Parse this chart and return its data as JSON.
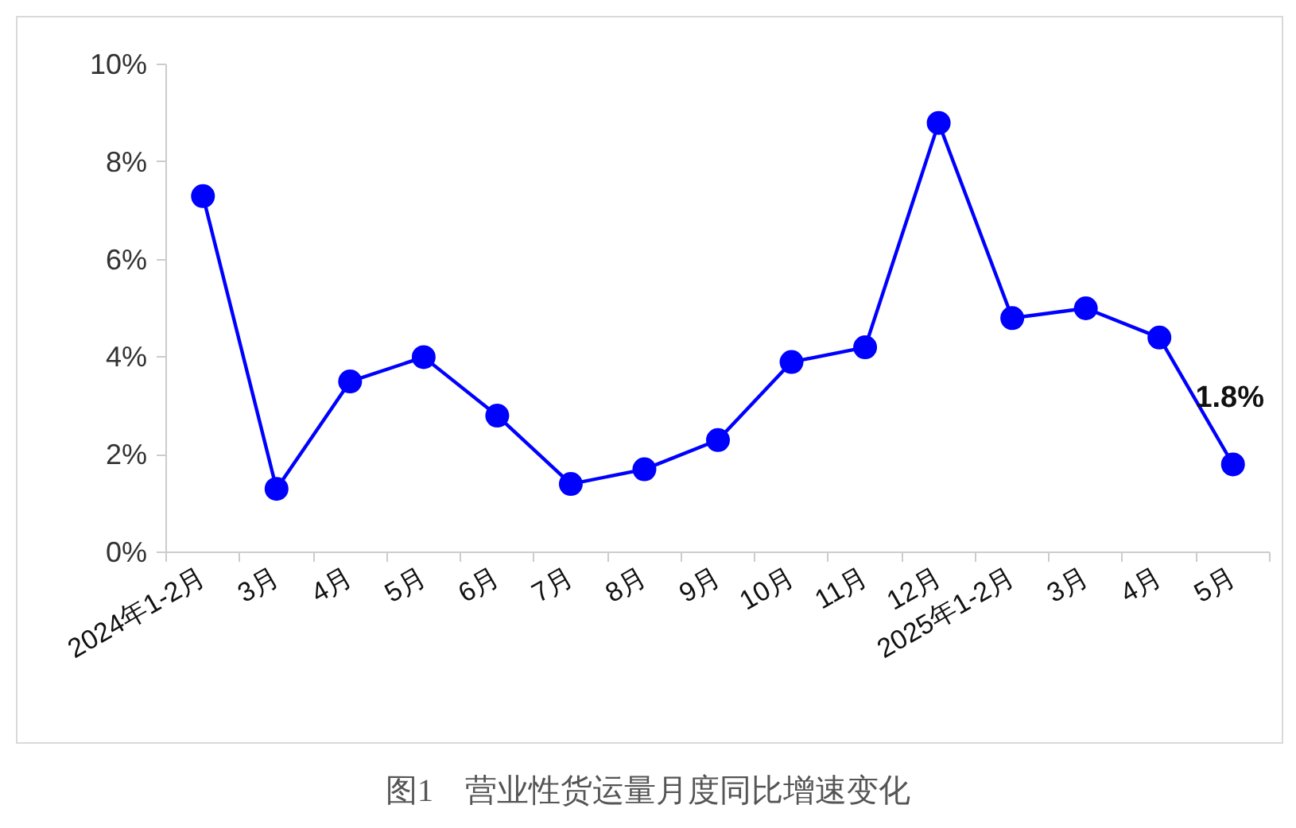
{
  "chart_data": {
    "type": "line",
    "title": "图1　营业性货运量月度同比增速变化",
    "categories": [
      "2024年1-2月",
      "3月",
      "4月",
      "5月",
      "6月",
      "7月",
      "8月",
      "9月",
      "10月",
      "11月",
      "12月",
      "2025年1-2月",
      "3月",
      "4月",
      "5月"
    ],
    "series": [
      {
        "color": "#0000ff",
        "values": [
          7.3,
          1.3,
          3.5,
          4.0,
          2.8,
          1.4,
          1.7,
          2.3,
          3.9,
          4.2,
          8.8,
          4.8,
          5.0,
          4.4,
          1.8
        ],
        "value_labels": [
          null,
          null,
          null,
          null,
          null,
          null,
          null,
          null,
          null,
          null,
          null,
          null,
          null,
          null,
          "1.8%"
        ]
      }
    ],
    "ylim": [
      0,
      10
    ],
    "yticks": [
      {
        "value": 0,
        "label": "0%"
      },
      {
        "value": 2,
        "label": "2%"
      },
      {
        "value": 4,
        "label": "4%"
      },
      {
        "value": 6,
        "label": "6%"
      },
      {
        "value": 8,
        "label": "8%"
      },
      {
        "value": 10,
        "label": "10%"
      }
    ],
    "marker": "circle",
    "line_style": "solid"
  }
}
